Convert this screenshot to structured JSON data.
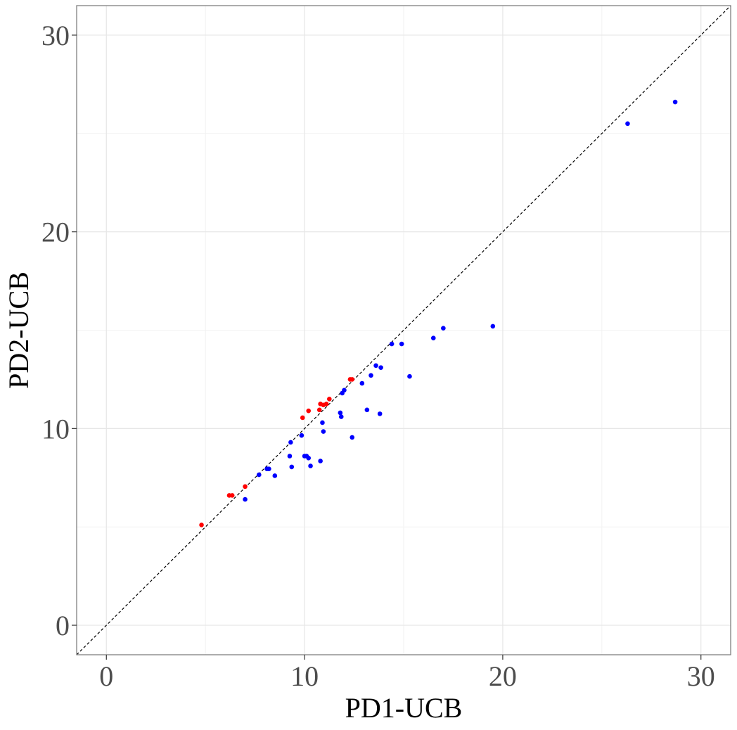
{
  "chart_data": {
    "type": "scatter",
    "title": "",
    "xlabel": "PD1-UCB",
    "ylabel": "PD2-UCB",
    "xlim": [
      -1.5,
      31.5
    ],
    "ylim": [
      -1.5,
      31.5
    ],
    "x_ticks": [
      0,
      10,
      20,
      30
    ],
    "y_ticks": [
      0,
      10,
      20,
      30
    ],
    "x_tick_labels": [
      "0",
      "10",
      "20",
      "30"
    ],
    "y_tick_labels": [
      "0",
      "10",
      "20",
      "30"
    ],
    "grid": true,
    "legend": "none",
    "reference_line": {
      "type": "identity",
      "style": "dashed",
      "color": "#000000"
    },
    "series": [
      {
        "color": "#ff0000",
        "points": [
          {
            "x": 4.8,
            "y": 5.1
          },
          {
            "x": 6.2,
            "y": 6.6
          },
          {
            "x": 6.35,
            "y": 6.6
          },
          {
            "x": 7.0,
            "y": 7.05
          },
          {
            "x": 9.9,
            "y": 10.55
          },
          {
            "x": 10.2,
            "y": 10.9
          },
          {
            "x": 10.75,
            "y": 10.95
          },
          {
            "x": 10.8,
            "y": 11.25
          },
          {
            "x": 10.95,
            "y": 11.2
          },
          {
            "x": 11.1,
            "y": 11.25
          },
          {
            "x": 11.25,
            "y": 11.5
          },
          {
            "x": 12.3,
            "y": 12.5
          },
          {
            "x": 12.4,
            "y": 12.5
          }
        ]
      },
      {
        "color": "#0000ff",
        "points": [
          {
            "x": 7.0,
            "y": 6.4
          },
          {
            "x": 7.7,
            "y": 7.65
          },
          {
            "x": 8.1,
            "y": 7.95
          },
          {
            "x": 8.2,
            "y": 7.95
          },
          {
            "x": 8.5,
            "y": 7.6
          },
          {
            "x": 9.25,
            "y": 8.6
          },
          {
            "x": 9.3,
            "y": 9.3
          },
          {
            "x": 9.35,
            "y": 8.05
          },
          {
            "x": 9.85,
            "y": 9.65
          },
          {
            "x": 10.0,
            "y": 8.6
          },
          {
            "x": 10.1,
            "y": 8.6
          },
          {
            "x": 10.2,
            "y": 8.5
          },
          {
            "x": 10.3,
            "y": 8.1
          },
          {
            "x": 10.8,
            "y": 8.35
          },
          {
            "x": 10.9,
            "y": 10.3
          },
          {
            "x": 10.95,
            "y": 9.85
          },
          {
            "x": 11.8,
            "y": 10.8
          },
          {
            "x": 11.85,
            "y": 10.6
          },
          {
            "x": 11.9,
            "y": 11.8
          },
          {
            "x": 12.0,
            "y": 11.95
          },
          {
            "x": 12.4,
            "y": 9.55
          },
          {
            "x": 12.9,
            "y": 12.3
          },
          {
            "x": 13.15,
            "y": 10.95
          },
          {
            "x": 13.35,
            "y": 12.7
          },
          {
            "x": 13.6,
            "y": 13.2
          },
          {
            "x": 13.8,
            "y": 10.75
          },
          {
            "x": 13.85,
            "y": 13.1
          },
          {
            "x": 14.4,
            "y": 14.3
          },
          {
            "x": 14.9,
            "y": 14.3
          },
          {
            "x": 15.3,
            "y": 12.65
          },
          {
            "x": 16.5,
            "y": 14.6
          },
          {
            "x": 17.0,
            "y": 15.1
          },
          {
            "x": 19.5,
            "y": 15.2
          },
          {
            "x": 26.3,
            "y": 25.5
          },
          {
            "x": 28.7,
            "y": 26.6
          }
        ]
      }
    ]
  }
}
